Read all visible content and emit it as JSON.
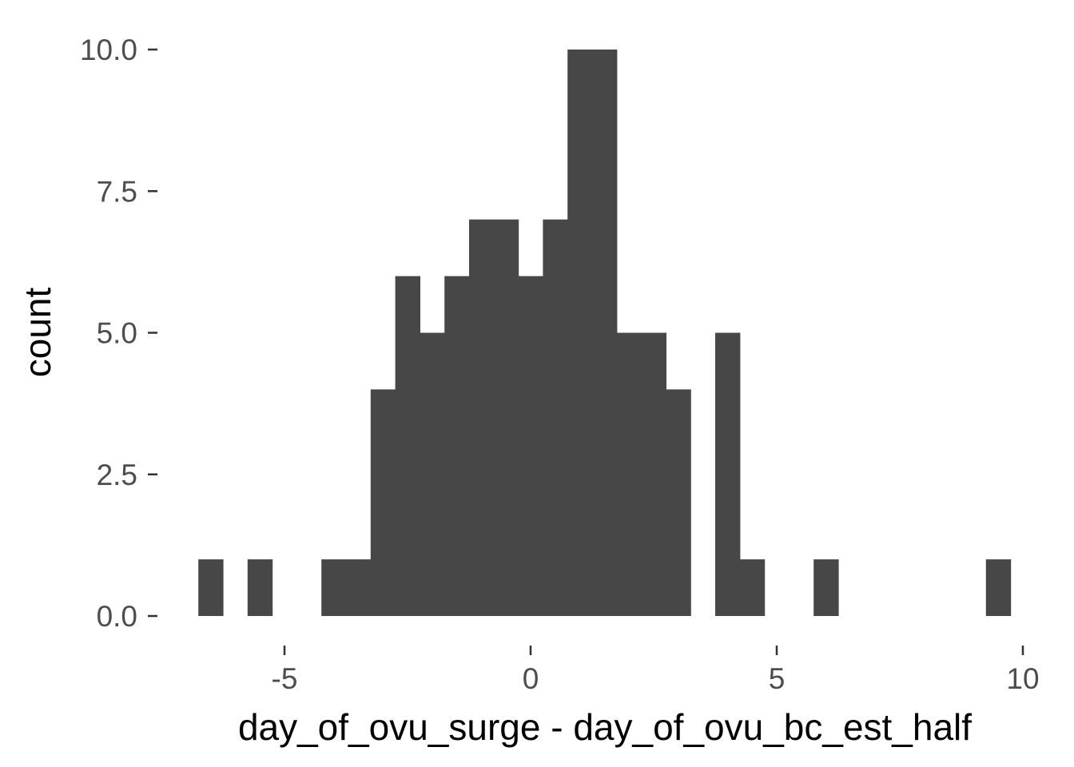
{
  "chart_data": {
    "type": "bar",
    "subtype": "histogram",
    "title": "",
    "xlabel": "day_of_ovu_surge - day_of_ovu_bc_est_half",
    "ylabel": "count",
    "xlim": [
      -7,
      10
    ],
    "ylim": [
      0,
      10
    ],
    "xticks": [
      -5,
      0,
      5,
      10
    ],
    "xtick_labels": [
      "-5",
      "0",
      "5",
      "10"
    ],
    "yticks": [
      0,
      2.5,
      5,
      7.5,
      10
    ],
    "ytick_labels": [
      "0.0",
      "2.5",
      "5.0",
      "7.5",
      "10.0"
    ],
    "bin_width": 0.5,
    "bins": [
      {
        "start": -6.75,
        "end": -6.25,
        "count": 1
      },
      {
        "start": -5.75,
        "end": -5.25,
        "count": 1
      },
      {
        "start": -4.25,
        "end": -3.75,
        "count": 1
      },
      {
        "start": -3.75,
        "end": -3.25,
        "count": 1
      },
      {
        "start": -3.25,
        "end": -2.75,
        "count": 4
      },
      {
        "start": -2.75,
        "end": -2.25,
        "count": 6
      },
      {
        "start": -2.25,
        "end": -1.75,
        "count": 5
      },
      {
        "start": -1.75,
        "end": -1.25,
        "count": 6
      },
      {
        "start": -1.25,
        "end": -0.75,
        "count": 7
      },
      {
        "start": -0.75,
        "end": -0.25,
        "count": 7
      },
      {
        "start": -0.25,
        "end": 0.25,
        "count": 6
      },
      {
        "start": 0.25,
        "end": 0.75,
        "count": 7
      },
      {
        "start": 0.75,
        "end": 1.25,
        "count": 10
      },
      {
        "start": 1.25,
        "end": 1.75,
        "count": 10
      },
      {
        "start": 1.75,
        "end": 2.25,
        "count": 5
      },
      {
        "start": 2.25,
        "end": 2.75,
        "count": 5
      },
      {
        "start": 2.75,
        "end": 3.25,
        "count": 4
      },
      {
        "start": 3.75,
        "end": 4.25,
        "count": 5
      },
      {
        "start": 4.25,
        "end": 4.75,
        "count": 1
      },
      {
        "start": 5.75,
        "end": 6.25,
        "count": 1
      },
      {
        "start": 9.25,
        "end": 9.75,
        "count": 1
      }
    ],
    "grid": false,
    "legend": "none",
    "bar_color": "#474747",
    "axis_text_color": "#4d4d4d",
    "title_color": "#000000"
  }
}
